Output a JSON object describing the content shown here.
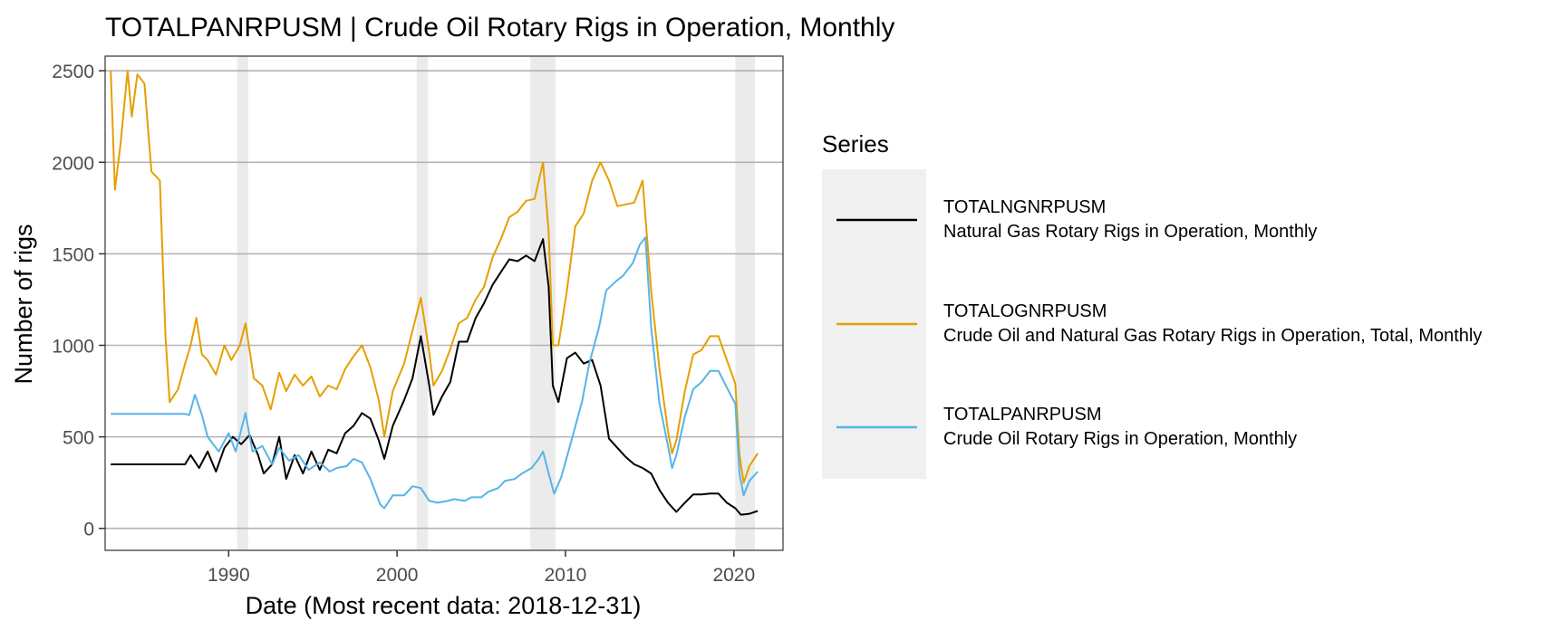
{
  "chart_data": {
    "type": "line",
    "title": "TOTALPANRPUSM | Crude Oil Rotary Rigs in Operation, Monthly",
    "xlabel": "Date (Most recent data: 2018-12-31)",
    "ylabel": "Number of rigs",
    "xlim": [
      "1982-09-01",
      "2022-12-01"
    ],
    "ylim": [
      -120,
      2580
    ],
    "x_ticks": [
      {
        "value": "1990-01-01",
        "label": "1990"
      },
      {
        "value": "2000-01-01",
        "label": "2000"
      },
      {
        "value": "2010-01-01",
        "label": "2010"
      },
      {
        "value": "2020-01-01",
        "label": "2020"
      }
    ],
    "y_ticks": [
      0,
      500,
      1000,
      1500,
      2000,
      2500
    ],
    "grid": true,
    "legend": {
      "title": "Series",
      "position": "right"
    },
    "recessions": [
      [
        "1990-07-01",
        "1991-03-01"
      ],
      [
        "2001-03-01",
        "2001-11-01"
      ],
      [
        "2007-12-01",
        "2009-06-01"
      ],
      [
        "2020-02-01",
        "2021-04-01"
      ]
    ],
    "series": [
      {
        "name": "TOTALNGNRPUSM",
        "description": "Natural Gas Rotary Rigs in Operation, Monthly",
        "color": "#000000",
        "points": [
          [
            "1983-01-01",
            350
          ],
          [
            "1987-06-01",
            350
          ],
          [
            "1987-10-01",
            400
          ],
          [
            "1988-04-01",
            330
          ],
          [
            "1988-10-01",
            420
          ],
          [
            "1989-04-01",
            310
          ],
          [
            "1989-10-01",
            440
          ],
          [
            "1990-04-01",
            500
          ],
          [
            "1990-10-01",
            460
          ],
          [
            "1991-04-01",
            510
          ],
          [
            "1991-10-01",
            400
          ],
          [
            "1992-02-01",
            300
          ],
          [
            "1992-08-01",
            350
          ],
          [
            "1993-01-01",
            500
          ],
          [
            "1993-06-01",
            270
          ],
          [
            "1993-12-01",
            400
          ],
          [
            "1994-06-01",
            300
          ],
          [
            "1994-12-01",
            420
          ],
          [
            "1995-06-01",
            320
          ],
          [
            "1995-12-01",
            430
          ],
          [
            "1996-06-01",
            410
          ],
          [
            "1996-12-01",
            520
          ],
          [
            "1997-06-01",
            560
          ],
          [
            "1997-12-01",
            630
          ],
          [
            "1998-06-01",
            600
          ],
          [
            "1998-12-01",
            480
          ],
          [
            "1999-04-01",
            380
          ],
          [
            "1999-10-01",
            560
          ],
          [
            "2000-06-01",
            700
          ],
          [
            "2000-12-01",
            820
          ],
          [
            "2001-06-01",
            1050
          ],
          [
            "2001-12-01",
            780
          ],
          [
            "2002-03-01",
            620
          ],
          [
            "2002-09-01",
            720
          ],
          [
            "2003-03-01",
            800
          ],
          [
            "2003-09-01",
            1020
          ],
          [
            "2004-03-01",
            1020
          ],
          [
            "2004-09-01",
            1150
          ],
          [
            "2005-03-01",
            1230
          ],
          [
            "2005-09-01",
            1330
          ],
          [
            "2006-03-01",
            1400
          ],
          [
            "2006-09-01",
            1470
          ],
          [
            "2007-03-01",
            1460
          ],
          [
            "2007-09-01",
            1490
          ],
          [
            "2008-03-01",
            1460
          ],
          [
            "2008-09-01",
            1580
          ],
          [
            "2009-01-01",
            1320
          ],
          [
            "2009-04-01",
            780
          ],
          [
            "2009-08-01",
            690
          ],
          [
            "2010-02-01",
            930
          ],
          [
            "2010-08-01",
            960
          ],
          [
            "2011-02-01",
            900
          ],
          [
            "2011-08-01",
            920
          ],
          [
            "2012-02-01",
            780
          ],
          [
            "2012-08-01",
            490
          ],
          [
            "2013-02-01",
            440
          ],
          [
            "2013-08-01",
            390
          ],
          [
            "2014-02-01",
            350
          ],
          [
            "2014-08-01",
            330
          ],
          [
            "2015-02-01",
            300
          ],
          [
            "2015-08-01",
            210
          ],
          [
            "2016-02-01",
            140
          ],
          [
            "2016-08-01",
            90
          ],
          [
            "2017-02-01",
            140
          ],
          [
            "2017-08-01",
            185
          ],
          [
            "2018-02-01",
            185
          ],
          [
            "2018-08-01",
            190
          ],
          [
            "2019-02-01",
            190
          ],
          [
            "2019-08-01",
            140
          ],
          [
            "2020-02-01",
            110
          ],
          [
            "2020-06-01",
            75
          ],
          [
            "2020-12-01",
            80
          ],
          [
            "2021-06-01",
            95
          ]
        ]
      },
      {
        "name": "TOTALOGNRPUSM",
        "description": "Crude Oil and Natural Gas Rotary Rigs in Operation, Total, Monthly",
        "color": "#E69F00",
        "points": [
          [
            "1983-01-01",
            2500
          ],
          [
            "1983-04-01",
            1850
          ],
          [
            "1983-08-01",
            2100
          ],
          [
            "1984-01-01",
            2500
          ],
          [
            "1984-04-01",
            2250
          ],
          [
            "1984-08-01",
            2480
          ],
          [
            "1985-01-01",
            2430
          ],
          [
            "1985-06-01",
            1950
          ],
          [
            "1985-12-01",
            1900
          ],
          [
            "1986-04-01",
            1050
          ],
          [
            "1986-07-01",
            690
          ],
          [
            "1987-01-01",
            760
          ],
          [
            "1987-06-01",
            900
          ],
          [
            "1987-10-01",
            1000
          ],
          [
            "1988-02-01",
            1150
          ],
          [
            "1988-06-01",
            950
          ],
          [
            "1988-10-01",
            920
          ],
          [
            "1989-04-01",
            840
          ],
          [
            "1989-10-01",
            1000
          ],
          [
            "1990-03-01",
            920
          ],
          [
            "1990-09-01",
            1000
          ],
          [
            "1991-01-01",
            1120
          ],
          [
            "1991-07-01",
            820
          ],
          [
            "1992-01-01",
            780
          ],
          [
            "1992-07-01",
            650
          ],
          [
            "1993-01-01",
            850
          ],
          [
            "1993-06-01",
            750
          ],
          [
            "1993-12-01",
            840
          ],
          [
            "1994-06-01",
            780
          ],
          [
            "1994-12-01",
            830
          ],
          [
            "1995-06-01",
            720
          ],
          [
            "1995-12-01",
            780
          ],
          [
            "1996-06-01",
            760
          ],
          [
            "1996-12-01",
            870
          ],
          [
            "1997-06-01",
            940
          ],
          [
            "1997-12-01",
            1000
          ],
          [
            "1998-06-01",
            880
          ],
          [
            "1998-12-01",
            700
          ],
          [
            "1999-04-01",
            500
          ],
          [
            "1999-10-01",
            750
          ],
          [
            "2000-06-01",
            900
          ],
          [
            "2000-12-01",
            1080
          ],
          [
            "2001-06-01",
            1260
          ],
          [
            "2001-12-01",
            960
          ],
          [
            "2002-03-01",
            780
          ],
          [
            "2002-09-01",
            860
          ],
          [
            "2003-03-01",
            980
          ],
          [
            "2003-09-01",
            1120
          ],
          [
            "2004-03-01",
            1150
          ],
          [
            "2004-09-01",
            1250
          ],
          [
            "2005-03-01",
            1320
          ],
          [
            "2005-09-01",
            1480
          ],
          [
            "2006-03-01",
            1580
          ],
          [
            "2006-09-01",
            1700
          ],
          [
            "2007-03-01",
            1730
          ],
          [
            "2007-09-01",
            1790
          ],
          [
            "2008-03-01",
            1800
          ],
          [
            "2008-09-01",
            2000
          ],
          [
            "2009-01-01",
            1620
          ],
          [
            "2009-04-01",
            1000
          ],
          [
            "2009-08-01",
            1000
          ],
          [
            "2010-02-01",
            1300
          ],
          [
            "2010-08-01",
            1650
          ],
          [
            "2011-02-01",
            1720
          ],
          [
            "2011-08-01",
            1900
          ],
          [
            "2012-02-01",
            2000
          ],
          [
            "2012-08-01",
            1900
          ],
          [
            "2013-02-01",
            1760
          ],
          [
            "2013-08-01",
            1770
          ],
          [
            "2014-02-01",
            1780
          ],
          [
            "2014-08-01",
            1900
          ],
          [
            "2015-02-01",
            1300
          ],
          [
            "2015-08-01",
            870
          ],
          [
            "2016-02-01",
            530
          ],
          [
            "2016-05-01",
            410
          ],
          [
            "2016-08-01",
            480
          ],
          [
            "2017-02-01",
            750
          ],
          [
            "2017-08-01",
            950
          ],
          [
            "2018-02-01",
            975
          ],
          [
            "2018-08-01",
            1050
          ],
          [
            "2019-02-01",
            1050
          ],
          [
            "2019-08-01",
            920
          ],
          [
            "2020-02-01",
            790
          ],
          [
            "2020-05-01",
            400
          ],
          [
            "2020-08-01",
            250
          ],
          [
            "2020-12-01",
            340
          ],
          [
            "2021-06-01",
            410
          ]
        ]
      },
      {
        "name": "TOTALPANRPUSM",
        "description": "Crude Oil Rotary Rigs in Operation, Monthly",
        "color": "#56B4E9",
        "points": [
          [
            "1983-01-01",
            625
          ],
          [
            "1987-06-01",
            625
          ],
          [
            "1987-09-01",
            620
          ],
          [
            "1988-01-01",
            730
          ],
          [
            "1988-06-01",
            620
          ],
          [
            "1988-10-01",
            500
          ],
          [
            "1989-06-01",
            420
          ],
          [
            "1990-01-01",
            520
          ],
          [
            "1990-06-01",
            420
          ],
          [
            "1991-01-01",
            630
          ],
          [
            "1991-06-01",
            420
          ],
          [
            "1992-01-01",
            450
          ],
          [
            "1992-08-01",
            350
          ],
          [
            "1993-01-01",
            440
          ],
          [
            "1993-08-01",
            370
          ],
          [
            "1994-03-01",
            400
          ],
          [
            "1994-10-01",
            320
          ],
          [
            "1995-06-01",
            360
          ],
          [
            "1996-01-01",
            310
          ],
          [
            "1996-06-01",
            330
          ],
          [
            "1997-01-01",
            340
          ],
          [
            "1997-06-01",
            380
          ],
          [
            "1997-12-01",
            360
          ],
          [
            "1998-06-01",
            270
          ],
          [
            "1999-01-01",
            130
          ],
          [
            "1999-04-01",
            110
          ],
          [
            "1999-10-01",
            180
          ],
          [
            "2000-06-01",
            180
          ],
          [
            "2000-12-01",
            230
          ],
          [
            "2001-06-01",
            220
          ],
          [
            "2001-12-01",
            150
          ],
          [
            "2002-06-01",
            140
          ],
          [
            "2003-01-01",
            150
          ],
          [
            "2003-06-01",
            160
          ],
          [
            "2004-01-01",
            150
          ],
          [
            "2004-06-01",
            170
          ],
          [
            "2005-01-01",
            170
          ],
          [
            "2005-06-01",
            200
          ],
          [
            "2006-01-01",
            220
          ],
          [
            "2006-06-01",
            260
          ],
          [
            "2007-01-01",
            270
          ],
          [
            "2007-06-01",
            300
          ],
          [
            "2008-01-01",
            330
          ],
          [
            "2008-06-01",
            380
          ],
          [
            "2008-09-01",
            420
          ],
          [
            "2009-01-01",
            300
          ],
          [
            "2009-05-01",
            190
          ],
          [
            "2009-10-01",
            280
          ],
          [
            "2010-06-01",
            500
          ],
          [
            "2011-01-01",
            700
          ],
          [
            "2011-06-01",
            900
          ],
          [
            "2012-01-01",
            1100
          ],
          [
            "2012-06-01",
            1300
          ],
          [
            "2013-01-01",
            1350
          ],
          [
            "2013-06-01",
            1380
          ],
          [
            "2014-01-01",
            1450
          ],
          [
            "2014-06-01",
            1550
          ],
          [
            "2014-10-01",
            1590
          ],
          [
            "2015-02-01",
            1100
          ],
          [
            "2015-08-01",
            680
          ],
          [
            "2016-02-01",
            450
          ],
          [
            "2016-05-01",
            330
          ],
          [
            "2016-08-01",
            400
          ],
          [
            "2017-02-01",
            610
          ],
          [
            "2017-08-01",
            760
          ],
          [
            "2018-02-01",
            800
          ],
          [
            "2018-08-01",
            860
          ],
          [
            "2019-02-01",
            860
          ],
          [
            "2019-08-01",
            770
          ],
          [
            "2020-02-01",
            680
          ],
          [
            "2020-05-01",
            300
          ],
          [
            "2020-08-01",
            180
          ],
          [
            "2020-12-01",
            260
          ],
          [
            "2021-06-01",
            310
          ]
        ]
      }
    ]
  }
}
